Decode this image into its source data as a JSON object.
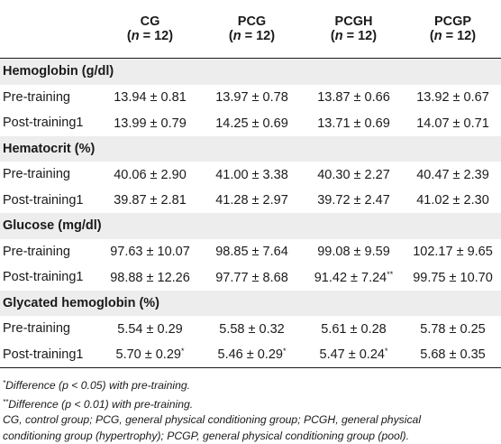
{
  "header": {
    "columns": [
      {
        "name": "CG",
        "n_label": "n",
        "n_value": "= 12"
      },
      {
        "name": "PCG",
        "n_label": "n",
        "n_value": "= 12"
      },
      {
        "name": "PCGH",
        "n_label": "n",
        "n_value": "= 12"
      },
      {
        "name": "PCGP",
        "n_label": "n",
        "n_value": "= 12"
      }
    ]
  },
  "sections": [
    {
      "title": "Hemoglobin (g/dl)",
      "rows": [
        {
          "label": "Pre-training",
          "values": [
            "13.94 ± 0.81",
            "13.97 ± 0.78",
            "13.87 ± 0.66",
            "13.92 ± 0.67"
          ],
          "marks": [
            "",
            "",
            "",
            ""
          ]
        },
        {
          "label": "Post-training1",
          "values": [
            "13.99 ± 0.79",
            "14.25 ± 0.69",
            "13.71 ± 0.69",
            "14.07 ± 0.71"
          ],
          "marks": [
            "",
            "",
            "",
            ""
          ]
        }
      ]
    },
    {
      "title": "Hematocrit (%)",
      "rows": [
        {
          "label": "Pre-training",
          "values": [
            "40.06 ± 2.90",
            "41.00 ± 3.38",
            "40.30 ± 2.27",
            "40.47 ± 2.39"
          ],
          "marks": [
            "",
            "",
            "",
            ""
          ]
        },
        {
          "label": "Post-training1",
          "values": [
            "39.87 ± 2.81",
            "41.28 ± 2.97",
            "39.72 ± 2.47",
            "41.02 ± 2.30"
          ],
          "marks": [
            "",
            "",
            "",
            ""
          ]
        }
      ]
    },
    {
      "title": "Glucose (mg/dl)",
      "rows": [
        {
          "label": "Pre-training",
          "values": [
            "97.63 ± 10.07",
            "98.85 ± 7.64",
            "99.08 ± 9.59",
            "102.17 ± 9.65"
          ],
          "marks": [
            "",
            "",
            "",
            ""
          ]
        },
        {
          "label": "Post-training1",
          "values": [
            "98.88 ± 12.26",
            "97.77 ± 8.68",
            "91.42 ± 7.24",
            "99.75 ± 10.70"
          ],
          "marks": [
            "",
            "",
            "**",
            ""
          ]
        }
      ]
    },
    {
      "title": "Glycated hemoglobin (%)",
      "rows": [
        {
          "label": "Pre-training",
          "values": [
            "5.54 ± 0.29",
            "5.58 ± 0.32",
            "5.61 ± 0.28",
            "5.78 ± 0.25"
          ],
          "marks": [
            "",
            "",
            "",
            ""
          ]
        },
        {
          "label": "Post-training1",
          "values": [
            "5.70 ± 0.29",
            "5.46 ± 0.29",
            "5.47 ± 0.24",
            "5.68 ± 0.35"
          ],
          "marks": [
            "*",
            "*",
            "*",
            ""
          ]
        }
      ]
    }
  ],
  "footnotes": {
    "note1_mark": "*",
    "note1_text": "Difference (p < 0.05) with pre-training.",
    "note2_mark": "**",
    "note2_text": "Difference (p < 0.01) with pre-training.",
    "abbrev_line1": "CG, control group; PCG, general physical conditioning group; PCGH, general physical",
    "abbrev_line2": "conditioning group (hypertrophy); PCGP, general physical conditioning group (pool)."
  }
}
